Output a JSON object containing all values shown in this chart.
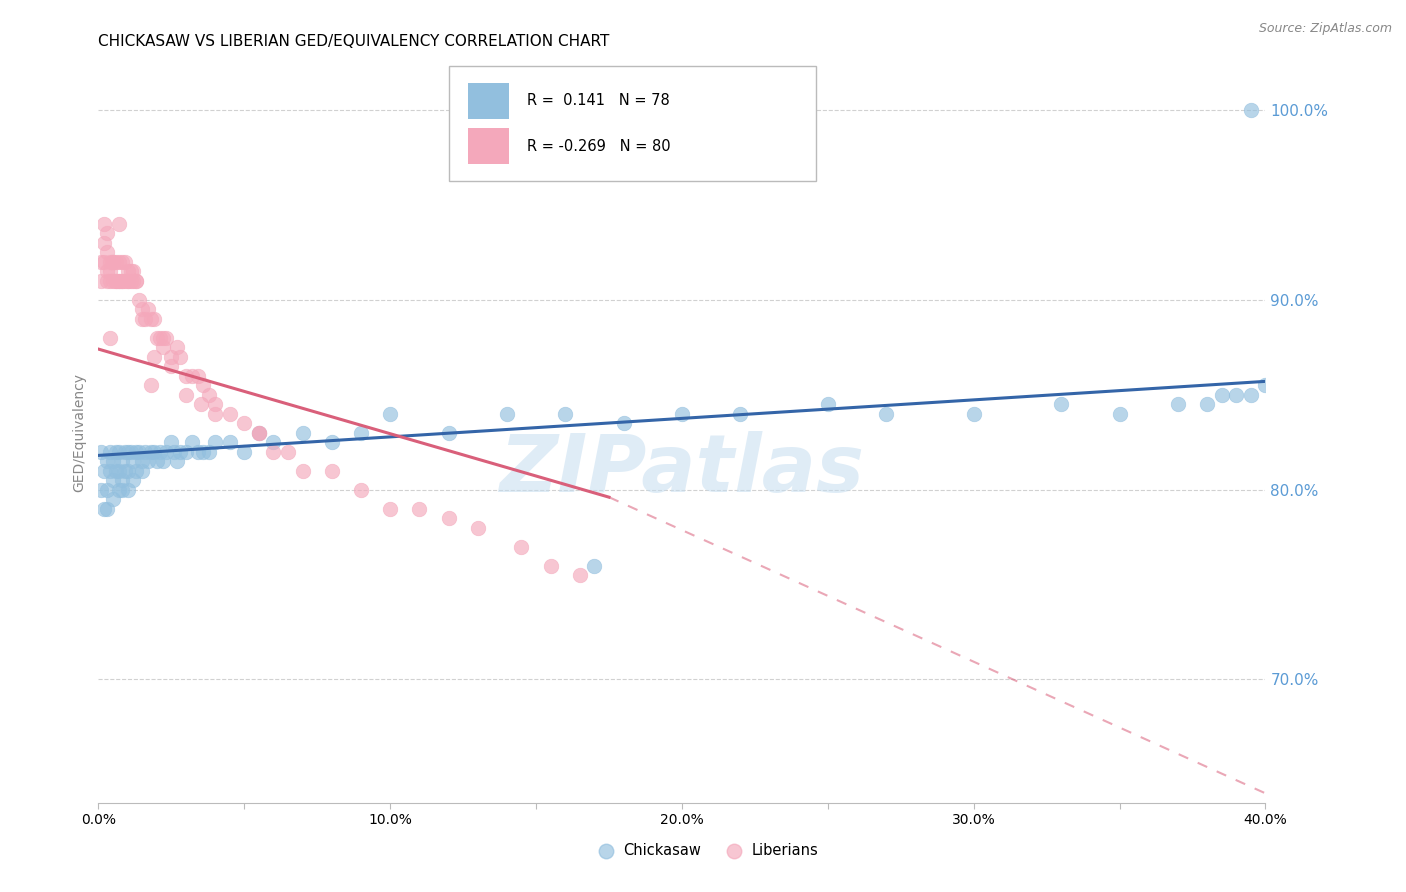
{
  "title": "CHICKASAW VS LIBERIAN GED/EQUIVALENCY CORRELATION CHART",
  "source": "Source: ZipAtlas.com",
  "ylabel": "GED/Equivalency",
  "xlim": [
    0.0,
    0.4
  ],
  "ylim": [
    0.635,
    1.025
  ],
  "xticks": [
    0.0,
    0.05,
    0.1,
    0.15,
    0.2,
    0.25,
    0.3,
    0.35,
    0.4
  ],
  "xtick_labels": [
    "0.0%",
    "",
    "10.0%",
    "",
    "20.0%",
    "",
    "30.0%",
    "",
    "40.0%"
  ],
  "yticks": [
    0.7,
    0.8,
    0.9,
    1.0
  ],
  "ytick_labels": [
    "70.0%",
    "80.0%",
    "90.0%",
    "100.0%"
  ],
  "grid_color": "#cccccc",
  "background_color": "#ffffff",
  "blue_color": "#92bfde",
  "pink_color": "#f4a8bb",
  "blue_line_color": "#3465a8",
  "pink_line_color": "#d95f7a",
  "legend_r1": "R =  0.141",
  "legend_n1": "N = 78",
  "legend_r2": "R = -0.269",
  "legend_n2": "N = 80",
  "label1": "Chickasaw",
  "label2": "Liberians",
  "watermark": "ZIPatlas",
  "title_fontsize": 11,
  "axis_label_fontsize": 10,
  "tick_fontsize": 10,
  "right_tick_color": "#5b9bd5",
  "chickasaw_x": [
    0.001,
    0.001,
    0.002,
    0.002,
    0.003,
    0.003,
    0.003,
    0.004,
    0.004,
    0.005,
    0.005,
    0.005,
    0.006,
    0.006,
    0.007,
    0.007,
    0.007,
    0.008,
    0.008,
    0.008,
    0.009,
    0.009,
    0.01,
    0.01,
    0.01,
    0.011,
    0.012,
    0.012,
    0.013,
    0.013,
    0.014,
    0.015,
    0.015,
    0.016,
    0.017,
    0.018,
    0.019,
    0.02,
    0.021,
    0.022,
    0.023,
    0.025,
    0.026,
    0.027,
    0.028,
    0.03,
    0.032,
    0.034,
    0.036,
    0.038,
    0.04,
    0.045,
    0.05,
    0.055,
    0.06,
    0.07,
    0.08,
    0.09,
    0.1,
    0.12,
    0.14,
    0.16,
    0.18,
    0.2,
    0.22,
    0.25,
    0.27,
    0.3,
    0.33,
    0.35,
    0.37,
    0.38,
    0.385,
    0.39,
    0.395,
    0.4,
    0.17,
    0.395
  ],
  "chickasaw_y": [
    0.82,
    0.8,
    0.81,
    0.79,
    0.815,
    0.8,
    0.79,
    0.82,
    0.81,
    0.805,
    0.815,
    0.795,
    0.82,
    0.81,
    0.81,
    0.8,
    0.82,
    0.815,
    0.805,
    0.8,
    0.82,
    0.81,
    0.82,
    0.81,
    0.8,
    0.82,
    0.815,
    0.805,
    0.82,
    0.81,
    0.82,
    0.815,
    0.81,
    0.82,
    0.815,
    0.82,
    0.82,
    0.815,
    0.82,
    0.815,
    0.82,
    0.825,
    0.82,
    0.815,
    0.82,
    0.82,
    0.825,
    0.82,
    0.82,
    0.82,
    0.825,
    0.825,
    0.82,
    0.83,
    0.825,
    0.83,
    0.825,
    0.83,
    0.84,
    0.83,
    0.84,
    0.84,
    0.835,
    0.84,
    0.84,
    0.845,
    0.84,
    0.84,
    0.845,
    0.84,
    0.845,
    0.845,
    0.85,
    0.85,
    0.85,
    0.855,
    0.76,
    1.0
  ],
  "liberian_x": [
    0.001,
    0.001,
    0.002,
    0.002,
    0.003,
    0.003,
    0.003,
    0.004,
    0.004,
    0.004,
    0.005,
    0.005,
    0.005,
    0.006,
    0.006,
    0.006,
    0.007,
    0.007,
    0.007,
    0.008,
    0.008,
    0.008,
    0.009,
    0.009,
    0.01,
    0.01,
    0.01,
    0.011,
    0.011,
    0.012,
    0.012,
    0.013,
    0.013,
    0.014,
    0.015,
    0.015,
    0.016,
    0.017,
    0.018,
    0.019,
    0.02,
    0.021,
    0.022,
    0.023,
    0.025,
    0.027,
    0.028,
    0.03,
    0.032,
    0.034,
    0.036,
    0.038,
    0.04,
    0.045,
    0.05,
    0.055,
    0.06,
    0.065,
    0.07,
    0.08,
    0.09,
    0.1,
    0.11,
    0.12,
    0.13,
    0.145,
    0.155,
    0.165,
    0.018,
    0.025,
    0.03,
    0.035,
    0.04,
    0.055,
    0.019,
    0.022,
    0.002,
    0.003,
    0.004,
    0.007
  ],
  "liberian_y": [
    0.92,
    0.91,
    0.92,
    0.93,
    0.91,
    0.925,
    0.915,
    0.92,
    0.915,
    0.91,
    0.92,
    0.91,
    0.92,
    0.91,
    0.92,
    0.91,
    0.91,
    0.92,
    0.91,
    0.91,
    0.92,
    0.91,
    0.91,
    0.92,
    0.91,
    0.915,
    0.91,
    0.91,
    0.915,
    0.91,
    0.915,
    0.91,
    0.91,
    0.9,
    0.89,
    0.895,
    0.89,
    0.895,
    0.89,
    0.89,
    0.88,
    0.88,
    0.88,
    0.88,
    0.87,
    0.875,
    0.87,
    0.86,
    0.86,
    0.86,
    0.855,
    0.85,
    0.845,
    0.84,
    0.835,
    0.83,
    0.82,
    0.82,
    0.81,
    0.81,
    0.8,
    0.79,
    0.79,
    0.785,
    0.78,
    0.77,
    0.76,
    0.755,
    0.855,
    0.865,
    0.85,
    0.845,
    0.84,
    0.83,
    0.87,
    0.875,
    0.94,
    0.935,
    0.88,
    0.94
  ],
  "blue_regression": [
    0.0,
    0.4,
    0.818,
    0.857
  ],
  "pink_regression_solid": [
    0.0,
    0.175,
    0.874,
    0.796
  ],
  "pink_regression_dashed": [
    0.175,
    0.4,
    0.796,
    0.64
  ]
}
